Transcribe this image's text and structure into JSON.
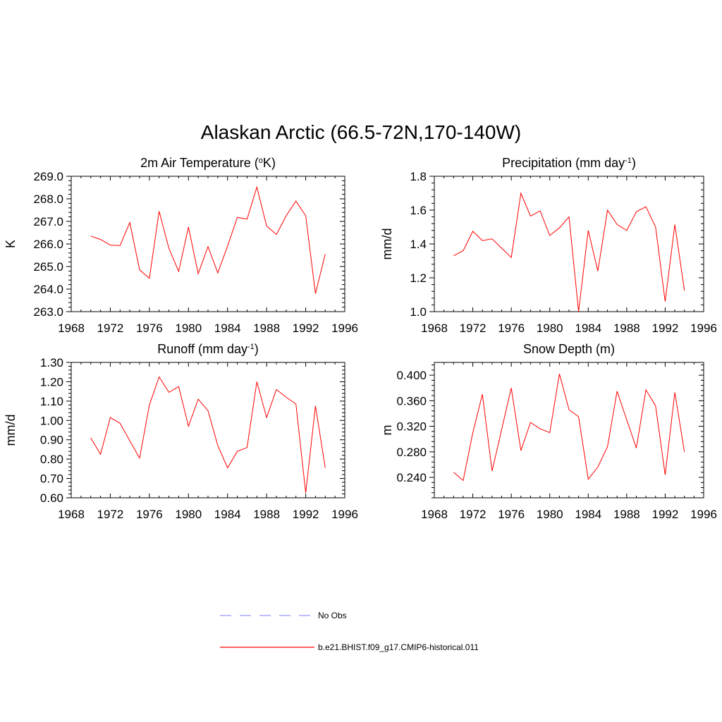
{
  "title": "Alaskan Arctic (66.5-72N,170-140W)",
  "colors": {
    "model": "#ff0000",
    "obs": "#9999ff",
    "axis": "#000000"
  },
  "legend": [
    {
      "label": "No Obs",
      "style": "dashed",
      "color": "#9999ff"
    },
    {
      "label": "b.e21.BHIST.f09_g17.CMIP6-historical.011",
      "style": "solid",
      "color": "#ff0000"
    }
  ],
  "chart_data": [
    {
      "type": "line",
      "title_main": "2m Air Temperature (",
      "title_sup_pre": "o",
      "title_mid": "K",
      "title_sup_post": "",
      "title_end": ")",
      "ylabel": "K",
      "xlim": [
        1968,
        1996
      ],
      "ylim": [
        263.0,
        269.0
      ],
      "xticks": [
        1968,
        1972,
        1976,
        1980,
        1984,
        1988,
        1992,
        1996
      ],
      "yticks": [
        "263.0",
        "264.0",
        "265.0",
        "266.0",
        "267.0",
        "268.0",
        "269.0"
      ],
      "ytick_values": [
        263.0,
        264.0,
        265.0,
        266.0,
        267.0,
        268.0,
        269.0
      ],
      "yminor_step": 0.2,
      "series": [
        {
          "x": [
            1970,
            1971,
            1972,
            1973,
            1974,
            1975,
            1976,
            1977,
            1978,
            1979,
            1980,
            1981,
            1982,
            1983,
            1984,
            1985,
            1986,
            1987,
            1988,
            1989,
            1990,
            1991,
            1992,
            1993,
            1994
          ],
          "values": [
            266.35,
            266.2,
            265.95,
            265.93,
            266.95,
            264.85,
            264.48,
            267.45,
            265.8,
            264.78,
            266.75,
            264.68,
            265.88,
            264.72,
            265.9,
            267.18,
            267.1,
            268.52,
            266.8,
            266.42,
            267.25,
            267.9,
            267.25,
            263.8,
            265.55
          ]
        }
      ]
    },
    {
      "type": "line",
      "title_main": "Precipitation (mm day",
      "title_sup_pre": "",
      "title_mid": "",
      "title_sup_post": "-1",
      "title_end": ")",
      "ylabel": "mm/d",
      "xlim": [
        1968,
        1996
      ],
      "ylim": [
        1.0,
        1.8
      ],
      "xticks": [
        1968,
        1972,
        1976,
        1980,
        1984,
        1988,
        1992,
        1996
      ],
      "yticks": [
        "1.0",
        "1.2",
        "1.4",
        "1.6",
        "1.8"
      ],
      "ytick_values": [
        1.0,
        1.2,
        1.4,
        1.6,
        1.8
      ],
      "yminor_step": 0.04,
      "series": [
        {
          "x": [
            1970,
            1971,
            1972,
            1973,
            1974,
            1975,
            1976,
            1977,
            1978,
            1979,
            1980,
            1981,
            1982,
            1983,
            1984,
            1985,
            1986,
            1987,
            1988,
            1989,
            1990,
            1991,
            1992,
            1993,
            1994
          ],
          "values": [
            1.33,
            1.36,
            1.475,
            1.42,
            1.43,
            1.375,
            1.32,
            1.7,
            1.565,
            1.595,
            1.45,
            1.495,
            1.56,
            1.0,
            1.48,
            1.24,
            1.6,
            1.515,
            1.48,
            1.59,
            1.62,
            1.5,
            1.06,
            1.515,
            1.125
          ]
        }
      ]
    },
    {
      "type": "line",
      "title_main": "Runoff (mm day",
      "title_sup_pre": "",
      "title_mid": "",
      "title_sup_post": "-1",
      "title_end": ")",
      "ylabel": "mm/d",
      "xlim": [
        1968,
        1996
      ],
      "ylim": [
        0.6,
        1.3
      ],
      "xticks": [
        1968,
        1972,
        1976,
        1980,
        1984,
        1988,
        1992,
        1996
      ],
      "yticks": [
        "0.60",
        "0.70",
        "0.80",
        "0.90",
        "1.00",
        "1.10",
        "1.20",
        "1.30"
      ],
      "ytick_values": [
        0.6,
        0.7,
        0.8,
        0.9,
        1.0,
        1.1,
        1.2,
        1.3
      ],
      "yminor_step": 0.02,
      "series": [
        {
          "x": [
            1970,
            1971,
            1972,
            1973,
            1974,
            1975,
            1976,
            1977,
            1978,
            1979,
            1980,
            1981,
            1982,
            1983,
            1984,
            1985,
            1986,
            1987,
            1988,
            1989,
            1990,
            1991,
            1992,
            1993,
            1994
          ],
          "values": [
            0.91,
            0.825,
            1.015,
            0.985,
            0.895,
            0.805,
            1.08,
            1.225,
            1.145,
            1.175,
            0.97,
            1.11,
            1.05,
            0.87,
            0.755,
            0.84,
            0.86,
            1.2,
            1.015,
            1.16,
            1.12,
            1.085,
            0.625,
            1.075,
            0.755
          ]
        }
      ]
    },
    {
      "type": "line",
      "title_main": "Snow Depth (m)",
      "title_sup_pre": "",
      "title_mid": "",
      "title_sup_post": "",
      "title_end": "",
      "ylabel": "m",
      "xlim": [
        1968,
        1996
      ],
      "ylim": [
        0.208,
        0.42
      ],
      "xticks": [
        1968,
        1972,
        1976,
        1980,
        1984,
        1988,
        1992,
        1996
      ],
      "yticks": [
        "0.240",
        "0.280",
        "0.320",
        "0.360",
        "0.400"
      ],
      "ytick_values": [
        0.24,
        0.28,
        0.32,
        0.36,
        0.4
      ],
      "yminor_step": 0.008,
      "series": [
        {
          "x": [
            1970,
            1971,
            1972,
            1973,
            1974,
            1975,
            1976,
            1977,
            1978,
            1979,
            1980,
            1981,
            1982,
            1983,
            1984,
            1985,
            1986,
            1987,
            1988,
            1989,
            1990,
            1991,
            1992,
            1993,
            1994
          ],
          "values": [
            0.248,
            0.235,
            0.31,
            0.37,
            0.25,
            0.315,
            0.38,
            0.282,
            0.326,
            0.316,
            0.31,
            0.402,
            0.346,
            0.335,
            0.237,
            0.256,
            0.288,
            0.375,
            0.33,
            0.286,
            0.377,
            0.352,
            0.244,
            0.373,
            0.28
          ]
        }
      ]
    }
  ]
}
